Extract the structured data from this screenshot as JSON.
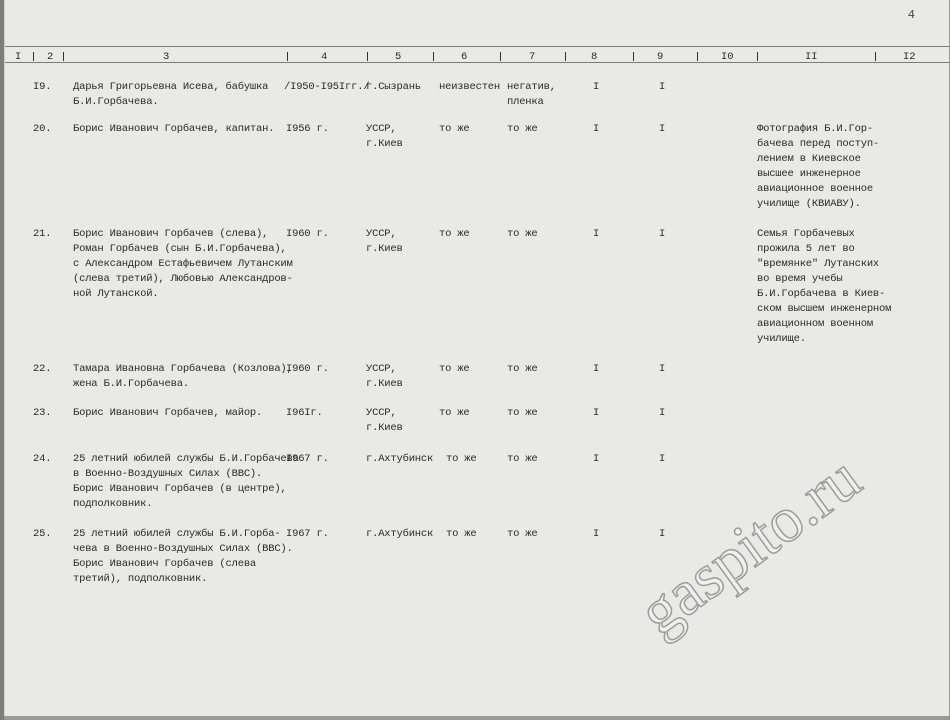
{
  "page_number": "4",
  "watermark": "gaspito.ru",
  "table": {
    "header": [
      "I",
      "2",
      "3",
      "4",
      "5",
      "6",
      "7",
      "8",
      "9",
      "I0",
      "II",
      "I2"
    ],
    "rows": [
      {
        "n": "I9.",
        "desc": "Дарья Григорьевна Исева, бабушка\nБ.И.Горбачева.",
        "date": "/I950-I95Iгг./",
        "place": "г.Сызрань",
        "c6": "неизвестен",
        "c7": "негатив,\nпленка",
        "c8": "I",
        "c9": "I"
      },
      {
        "n": "20.",
        "desc": "Борис Иванович Горбачев, капитан.",
        "date": "I956 г.",
        "place": "УССР,\nг.Киев",
        "c6": "то же",
        "c7": "то же",
        "c8": "I",
        "c9": "I",
        "note": "Фотография Б.И.Гор-\nбачева перед поступ-\nлением в Киевское\nвысшее инженерное\nавиационное военное\nучилище (КВИАВУ)."
      },
      {
        "n": "21.",
        "desc": "Борис Иванович Горбачев (слева),\nРоман Горбачев (сын Б.И.Горбачева),\nс Александром Естафьевичем Лутанским\n(слева третий), Любовью Александров-\nной Лутанской.",
        "date": "I960 г.",
        "place": "УССР,\nг.Киев",
        "c6": "то же",
        "c7": "то же",
        "c8": "I",
        "c9": "I",
        "note": "Семья Горбачевых\nпрожила 5 лет во\n\"времянке\" Лутанских\nво время учебы\nБ.И.Горбачева в Киев-\nском высшем инженерном\nавиационном военном\nучилище."
      },
      {
        "n": "22.",
        "desc": "Тамара Ивановна Горбачева (Козлова),\nжена Б.И.Горбачева.",
        "date": "I960 г.",
        "place": "УССР,\nг.Киев",
        "c6": "то же",
        "c7": "то же",
        "c8": "I",
        "c9": "I"
      },
      {
        "n": "23.",
        "desc": "Борис Иванович Горбачев, майор.",
        "date": "I96Iг.",
        "place": "УССР,\nг.Киев",
        "c6": "то же",
        "c7": "то же",
        "c8": "I",
        "c9": "I"
      },
      {
        "n": "24.",
        "desc": "25 летний юбилей службы Б.И.Горбачева\nв Военно-Воздушных Силах (ВВС).\nБорис Иванович Горбачев (в центре),\nподполковник.",
        "date": "I967 г.",
        "place": "г.Ахтубинск",
        "c6": "то же",
        "c7": "то же",
        "c8": "I",
        "c9": "I"
      },
      {
        "n": "25.",
        "desc": "25 летний юбилей службы Б.И.Горба-\nчева в Военно-Воздушных Силах (ВВС).\nБорис Иванович Горбачев (слева\nтретий), подполковник.",
        "date": "I967 г.",
        "place": "г.Ахтубинск",
        "c6": "то же",
        "c7": "то же",
        "c8": "I",
        "c9": "I"
      }
    ]
  }
}
